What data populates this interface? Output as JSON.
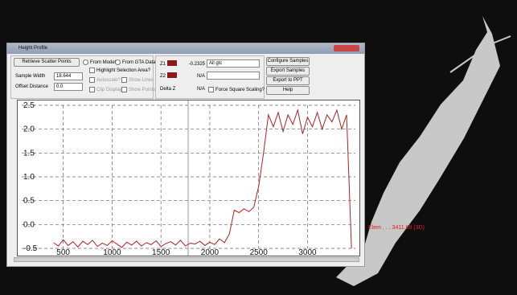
{
  "window": {
    "title": "Height Profile"
  },
  "controls": {
    "retrieve_button": "Retrieve Scatter Points",
    "source_models": "From Models",
    "source_gta": "From GTA Data",
    "highlight": "Highlight Selection Area?",
    "sample_width_label": "Sample Width",
    "sample_width_value": "18.644",
    "offset_label": "Offset Distance",
    "offset_value": "0.0",
    "autoscale": "Autoscale?",
    "show_lines": "Show Lines",
    "clip_display": "Clip Display?",
    "show_points": "Show Points",
    "z1_label": "Z1",
    "z1_value": "-0.2325",
    "z1_select": "All gtc",
    "z2_label": "Z2",
    "z2_value": "N/A",
    "delta_label": "Delta Z",
    "delta_value": "N/A",
    "force_square": "Force Square Scaling?",
    "configure_button": "Configure Samples",
    "export_button": "Export Samples",
    "ppt_button": "Export to PPT",
    "help_button": "Help"
  },
  "chart_data": {
    "type": "line",
    "x": [
      400,
      450,
      500,
      550,
      600,
      650,
      700,
      750,
      800,
      850,
      900,
      950,
      1000,
      1050,
      1100,
      1150,
      1200,
      1250,
      1300,
      1350,
      1400,
      1450,
      1500,
      1550,
      1600,
      1650,
      1700,
      1750,
      1800,
      1850,
      1900,
      1950,
      2000,
      2050,
      2100,
      2150,
      2200,
      2250,
      2300,
      2350,
      2400,
      2450,
      2500,
      2550,
      2600,
      2650,
      2700,
      2750,
      2800,
      2850,
      2900,
      2950,
      3000,
      3050,
      3100,
      3150,
      3200,
      3250,
      3300,
      3350,
      3400,
      3450
    ],
    "series": [
      {
        "color": "#b02020",
        "values": [
          -0.38,
          -0.45,
          -0.32,
          -0.44,
          -0.36,
          -0.47,
          -0.35,
          -0.42,
          -0.33,
          -0.46,
          -0.39,
          -0.44,
          -0.34,
          -0.41,
          -0.48,
          -0.37,
          -0.43,
          -0.35,
          -0.45,
          -0.38,
          -0.42,
          -0.34,
          -0.46,
          -0.4,
          -0.36,
          -0.43,
          -0.33,
          -0.45,
          -0.39,
          -0.41,
          -0.35,
          -0.44,
          -0.37,
          -0.42,
          -0.3,
          -0.38,
          -0.2,
          0.3,
          0.25,
          0.33,
          0.27,
          0.36,
          0.8,
          1.5,
          2.3,
          2.05,
          2.35,
          1.95,
          2.3,
          2.1,
          2.4,
          1.9,
          2.25,
          2.05,
          2.35,
          2.0,
          2.3,
          2.15,
          2.4,
          2.0,
          2.3,
          -0.5
        ]
      }
    ],
    "xlim": [
      75,
      3490
    ],
    "ylim": [
      -0.5,
      2.5
    ],
    "xticks": [
      500,
      1000,
      1500,
      2000,
      2500,
      3000
    ],
    "yticks": [
      2.5,
      {
        "value": 2,
        "label": "2.0"
      },
      1.5,
      {
        "value": 1,
        "label": "1.0"
      },
      0.5,
      {
        "value": 0,
        "label": "0.0"
      },
      -0.5
    ],
    "grid": true
  },
  "map": {
    "label": "Elem . . . 3411.68 (3D)"
  }
}
